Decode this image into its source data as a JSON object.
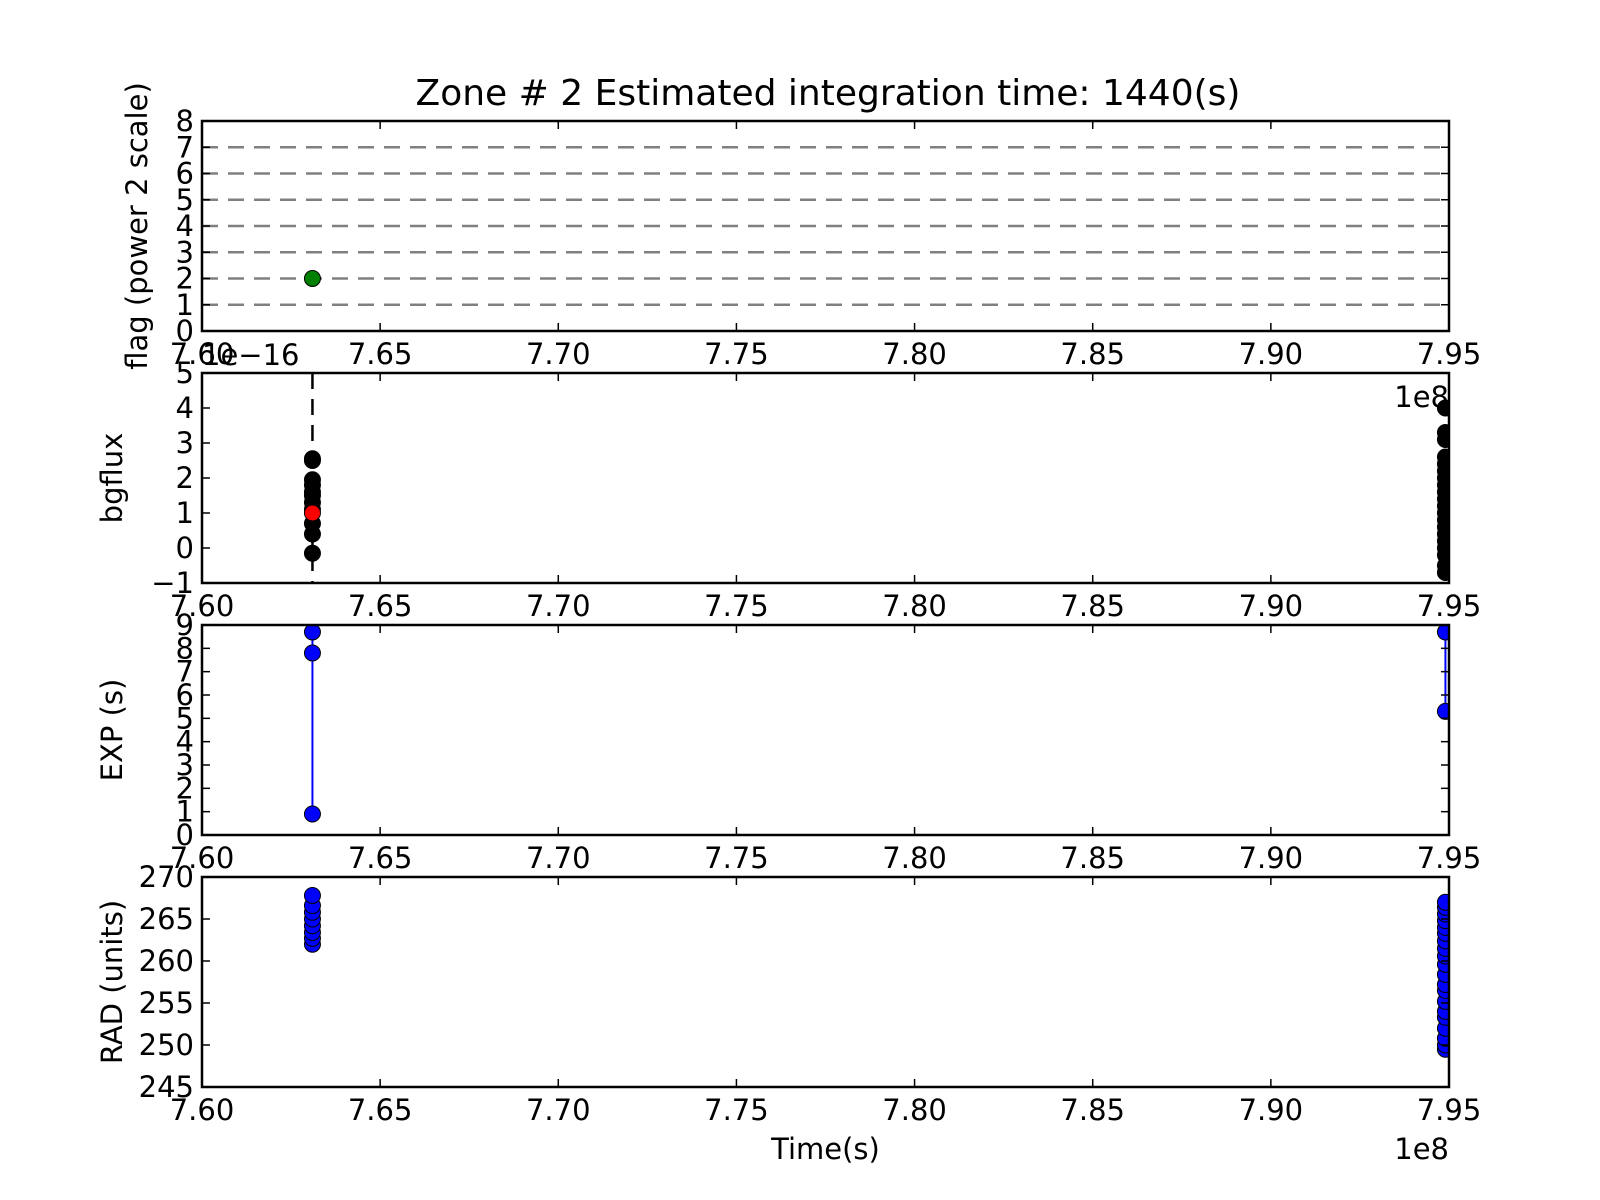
{
  "title": "Zone # 2 Estimated integration time: 1440(s)",
  "chart_data": [
    {
      "id": "flag",
      "type": "scatter",
      "ylabel": "flag (power 2 scale)",
      "xlabel": "",
      "xlim": [
        7.6,
        7.95
      ],
      "ylim": [
        0,
        8
      ],
      "x_offset_label": "",
      "y_offset_label": "",
      "yticks": [
        0,
        1,
        2,
        3,
        4,
        5,
        6,
        7,
        8
      ],
      "hlines": [
        1,
        2,
        3,
        4,
        5,
        6,
        7
      ],
      "hline_color": "#808080",
      "series": [
        {
          "marker_color": "#008000",
          "connect": false,
          "points": [
            [
              7.631,
              2
            ]
          ]
        }
      ]
    },
    {
      "id": "bgflux",
      "type": "scatter",
      "ylabel": "bgflux",
      "xlabel": "",
      "xlim": [
        7.6,
        7.95
      ],
      "ylim": [
        -1,
        5
      ],
      "x_offset_label": "1e8",
      "y_offset_label": "1e−16",
      "yticks": [
        -1,
        0,
        1,
        2,
        3,
        4,
        5
      ],
      "vline": 7.631,
      "vline_color": "#000000",
      "series": [
        {
          "marker_color": "#000000",
          "connect": false,
          "points": [
            [
              7.631,
              -0.15
            ],
            [
              7.631,
              0.4
            ],
            [
              7.631,
              0.7
            ],
            [
              7.631,
              1.1
            ],
            [
              7.631,
              1.3
            ],
            [
              7.631,
              1.5
            ],
            [
              7.631,
              1.6
            ],
            [
              7.631,
              1.8
            ],
            [
              7.631,
              1.95
            ],
            [
              7.631,
              2.5
            ],
            [
              7.631,
              2.55
            ],
            [
              7.949,
              -0.7
            ],
            [
              7.949,
              -0.5
            ],
            [
              7.949,
              -0.2
            ],
            [
              7.949,
              0
            ],
            [
              7.949,
              0.2
            ],
            [
              7.949,
              0.4
            ],
            [
              7.949,
              0.6
            ],
            [
              7.949,
              0.8
            ],
            [
              7.949,
              1.0
            ],
            [
              7.949,
              1.2
            ],
            [
              7.949,
              1.4
            ],
            [
              7.949,
              1.6
            ],
            [
              7.949,
              1.8
            ],
            [
              7.949,
              2.0
            ],
            [
              7.949,
              2.2
            ],
            [
              7.949,
              2.4
            ],
            [
              7.949,
              2.6
            ],
            [
              7.949,
              3.1
            ],
            [
              7.949,
              3.3
            ],
            [
              7.949,
              4.0
            ]
          ]
        },
        {
          "marker_color": "#ff0000",
          "connect": false,
          "points": [
            [
              7.631,
              1.0
            ]
          ]
        }
      ]
    },
    {
      "id": "exp",
      "type": "line",
      "ylabel": "EXP (s)",
      "xlabel": "",
      "xlim": [
        7.6,
        7.95
      ],
      "ylim": [
        0,
        9
      ],
      "x_offset_label": "",
      "y_offset_label": "",
      "yticks": [
        0,
        1,
        2,
        3,
        4,
        5,
        6,
        7,
        8,
        9
      ],
      "series": [
        {
          "marker_color": "#0000ff",
          "line_color": "#0000ff",
          "connect": true,
          "points": [
            [
              7.631,
              8.7
            ],
            [
              7.631,
              7.8
            ],
            [
              7.631,
              0.9
            ],
            [
              7.949,
              8.7
            ],
            [
              7.949,
              5.3
            ]
          ]
        }
      ]
    },
    {
      "id": "rad",
      "type": "scatter",
      "ylabel": "RAD (units)",
      "xlabel": "Time(s)",
      "xlim": [
        7.6,
        7.95
      ],
      "ylim": [
        245,
        270
      ],
      "x_offset_label": "1e8",
      "y_offset_label": "",
      "yticks": [
        245,
        250,
        255,
        260,
        265,
        270
      ],
      "series": [
        {
          "marker_color": "#0000ff",
          "connect": false,
          "points": [
            [
              7.631,
              262
            ],
            [
              7.631,
              262.7
            ],
            [
              7.631,
              263.4
            ],
            [
              7.631,
              264.2
            ],
            [
              7.631,
              265
            ],
            [
              7.631,
              265.8
            ],
            [
              7.631,
              266.6
            ],
            [
              7.631,
              267.8
            ],
            [
              7.949,
              249.5
            ],
            [
              7.949,
              250
            ],
            [
              7.949,
              250.8
            ],
            [
              7.949,
              252
            ],
            [
              7.949,
              253.3
            ],
            [
              7.949,
              254
            ],
            [
              7.949,
              255.2
            ],
            [
              7.949,
              256.5
            ],
            [
              7.949,
              257.2
            ],
            [
              7.949,
              258.4
            ],
            [
              7.949,
              259.6
            ],
            [
              7.949,
              260.6
            ],
            [
              7.949,
              261.5
            ],
            [
              7.949,
              262.4
            ],
            [
              7.949,
              263.3
            ],
            [
              7.949,
              264
            ],
            [
              7.949,
              264.8
            ],
            [
              7.949,
              265.6
            ],
            [
              7.949,
              266.4
            ],
            [
              7.949,
              267
            ]
          ]
        }
      ]
    }
  ],
  "xticks": [
    7.6,
    7.65,
    7.7,
    7.75,
    7.8,
    7.85,
    7.9,
    7.95
  ]
}
